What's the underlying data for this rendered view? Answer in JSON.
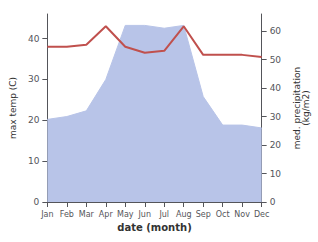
{
  "chart_data": {
    "type": "line",
    "categories": [
      "Jan",
      "Feb",
      "Mar",
      "Apr",
      "May",
      "Jun",
      "Jul",
      "Aug",
      "Sep",
      "Oct",
      "Nov",
      "Dec"
    ],
    "xlabel": "date (month)",
    "ylabel": "max temp (C)",
    "y2label": "med. precipitation\n(kg/m2)",
    "series": [
      {
        "type": "area",
        "color": "#b8c4e8",
        "axis": "y2",
        "values": [
          29,
          30,
          32,
          43,
          62,
          62,
          61,
          62,
          37,
          27,
          27,
          26
        ]
      },
      {
        "type": "line",
        "color": "#c0504d",
        "values": [
          38,
          38,
          38.5,
          43,
          38,
          36.5,
          37,
          43,
          36,
          36,
          36,
          35.5
        ]
      }
    ],
    "ylim": [
      0,
      46
    ],
    "yticks": [
      0,
      10,
      20,
      30,
      40
    ],
    "y2lim": [
      0,
      66
    ],
    "y2ticks": [
      0,
      10,
      20,
      30,
      40,
      50,
      60
    ],
    "grid": false
  }
}
